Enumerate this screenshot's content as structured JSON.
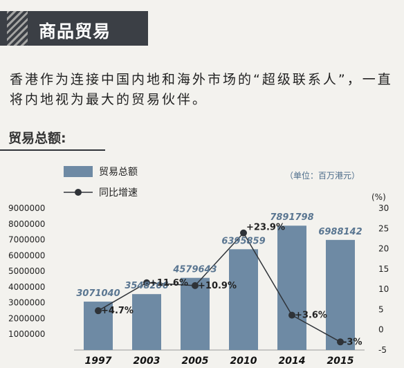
{
  "header": {
    "title": "商品贸易"
  },
  "intro": {
    "text": "香港作为连接中国内地和海外市场的“超级联系人”，一直将内地视为最大的贸易伙伴。"
  },
  "section": {
    "heading": "贸易总额:"
  },
  "colors": {
    "bar": "#6e8aa4",
    "line": "#2f3338",
    "value_label": "#5a7691",
    "banner": "#3b3f45"
  },
  "chart_data": {
    "type": "bar",
    "categories": [
      "1997",
      "2003",
      "2005",
      "2010",
      "2014",
      "2015"
    ],
    "series": [
      {
        "name": "贸易总额",
        "type": "bar",
        "axis": "left",
        "values": [
          3071040,
          3548206,
          4579643,
          6395859,
          7891798,
          6988142
        ],
        "labels": [
          "3071040",
          "3548206",
          "4579643",
          "6395859",
          "7891798",
          "6988142"
        ]
      },
      {
        "name": "同比增速",
        "type": "line",
        "axis": "right",
        "values": [
          4.7,
          11.6,
          10.9,
          23.9,
          3.6,
          -3
        ],
        "labels": [
          "+4.7%",
          "+11.6%",
          "+10.9%",
          "+23.9%",
          "+3.6%",
          "-3%"
        ]
      }
    ],
    "unit_label": "（单位：百万港元）",
    "y2_unit": "(%)",
    "yticks": [
      "9000000",
      "8000000",
      "7000000",
      "6000000",
      "5000000",
      "4000000",
      "3000000",
      "2000000",
      "1000000"
    ],
    "y2ticks": [
      "30",
      "25",
      "20",
      "15",
      "10",
      "5",
      "0",
      "-5"
    ],
    "ylim": [
      0,
      9000000
    ],
    "y2lim": [
      -5,
      30
    ],
    "legend_position": "top-left",
    "grid": false
  }
}
